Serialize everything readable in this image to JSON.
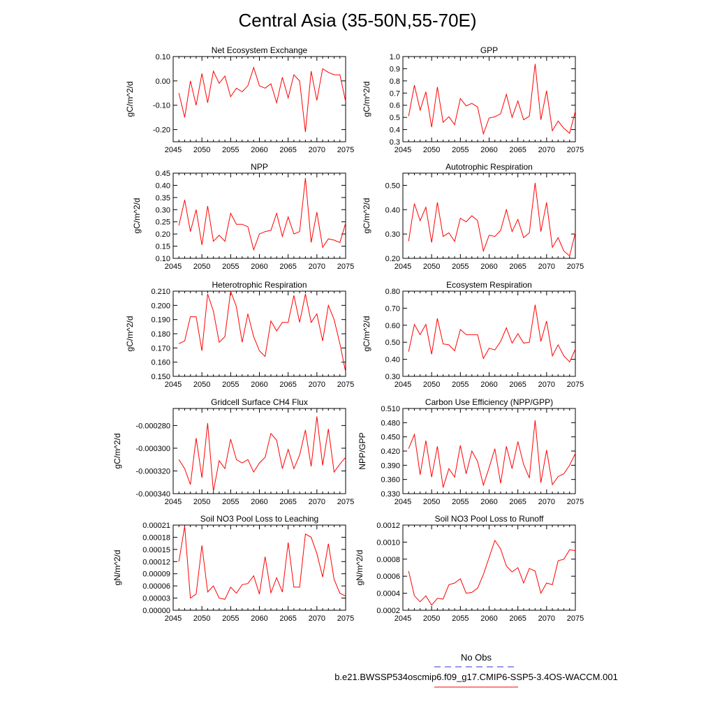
{
  "figure": {
    "title": "Central Asia (35-50N,55-70E)",
    "legend": {
      "obs_label": "No Obs",
      "run_label": "b.e21.BWSSP534oscmip6.f09_g17.CMIP6-SSP5-3.4OS-WACCM.001",
      "obs_color": "#3333cc",
      "run_color": "#ff0000"
    }
  },
  "chart_data": [
    {
      "type": "line",
      "title": "Net Ecosystem Exchange",
      "ylabel": "gC/m^2/d",
      "xlim": [
        2045,
        2075
      ],
      "ylim": [
        -0.25,
        0.1
      ],
      "xticks": [
        2045,
        2050,
        2055,
        2060,
        2065,
        2070,
        2075
      ],
      "yticks": [
        -0.2,
        -0.1,
        0.0,
        0.1
      ],
      "ytick_labels": [
        "-0.20",
        "-0.10",
        "0.00",
        "0.10"
      ],
      "series": [
        {
          "color": "#ff0000",
          "x": [
            2046,
            2047,
            2048,
            2049,
            2050,
            2051,
            2052,
            2053,
            2054,
            2055,
            2056,
            2057,
            2058,
            2059,
            2060,
            2061,
            2062,
            2063,
            2064,
            2065,
            2066,
            2067,
            2068,
            2069,
            2070,
            2071,
            2072,
            2073,
            2074,
            2075
          ],
          "values": [
            -0.05,
            -0.15,
            0.0,
            -0.1,
            0.03,
            -0.09,
            0.04,
            -0.01,
            0.02,
            -0.065,
            -0.03,
            -0.045,
            -0.02,
            0.055,
            -0.02,
            -0.03,
            -0.012,
            -0.09,
            0.015,
            -0.07,
            0.025,
            0.0,
            -0.21,
            0.04,
            -0.08,
            0.05,
            0.035,
            0.025,
            0.025,
            -0.085
          ]
        }
      ]
    },
    {
      "type": "line",
      "title": "GPP",
      "ylabel": "gC/m^2/d",
      "xlim": [
        2045,
        2075
      ],
      "ylim": [
        0.3,
        1.0
      ],
      "xticks": [
        2045,
        2050,
        2055,
        2060,
        2065,
        2070,
        2075
      ],
      "yticks": [
        0.3,
        0.4,
        0.5,
        0.6,
        0.7,
        0.8,
        0.9,
        1.0
      ],
      "ytick_labels": [
        "0.3",
        "0.4",
        "0.5",
        "0.6",
        "0.7",
        "0.8",
        "0.9",
        "1.0"
      ],
      "series": [
        {
          "color": "#ff0000",
          "x": [
            2046,
            2047,
            2048,
            2049,
            2050,
            2051,
            2052,
            2053,
            2054,
            2055,
            2056,
            2057,
            2058,
            2059,
            2060,
            2061,
            2062,
            2063,
            2064,
            2065,
            2066,
            2067,
            2068,
            2069,
            2070,
            2071,
            2072,
            2073,
            2074,
            2075
          ],
          "values": [
            0.51,
            0.765,
            0.56,
            0.71,
            0.42,
            0.75,
            0.46,
            0.505,
            0.44,
            0.655,
            0.595,
            0.615,
            0.585,
            0.365,
            0.495,
            0.505,
            0.53,
            0.69,
            0.5,
            0.635,
            0.48,
            0.51,
            0.94,
            0.48,
            0.72,
            0.39,
            0.47,
            0.41,
            0.37,
            0.55
          ]
        }
      ]
    },
    {
      "type": "line",
      "title": "NPP",
      "ylabel": "gC/m^2/d",
      "xlim": [
        2045,
        2075
      ],
      "ylim": [
        0.1,
        0.45
      ],
      "xticks": [
        2045,
        2050,
        2055,
        2060,
        2065,
        2070,
        2075
      ],
      "yticks": [
        0.1,
        0.15,
        0.2,
        0.25,
        0.3,
        0.35,
        0.4,
        0.45
      ],
      "ytick_labels": [
        "0.10",
        "0.15",
        "0.20",
        "0.25",
        "0.30",
        "0.35",
        "0.40",
        "0.45"
      ],
      "series": [
        {
          "color": "#ff0000",
          "x": [
            2046,
            2047,
            2048,
            2049,
            2050,
            2051,
            2052,
            2053,
            2054,
            2055,
            2056,
            2057,
            2058,
            2059,
            2060,
            2061,
            2062,
            2063,
            2064,
            2065,
            2066,
            2067,
            2068,
            2069,
            2070,
            2071,
            2072,
            2073,
            2074,
            2075
          ],
          "values": [
            0.235,
            0.34,
            0.21,
            0.3,
            0.155,
            0.315,
            0.17,
            0.195,
            0.17,
            0.285,
            0.24,
            0.24,
            0.23,
            0.135,
            0.2,
            0.21,
            0.215,
            0.285,
            0.19,
            0.27,
            0.2,
            0.21,
            0.43,
            0.165,
            0.29,
            0.145,
            0.18,
            0.175,
            0.165,
            0.245
          ]
        }
      ]
    },
    {
      "type": "line",
      "title": "Autotrophic Respiration",
      "ylabel": "gC/m^2/d",
      "xlim": [
        2045,
        2075
      ],
      "ylim": [
        0.2,
        0.55
      ],
      "xticks": [
        2045,
        2050,
        2055,
        2060,
        2065,
        2070,
        2075
      ],
      "yticks": [
        0.2,
        0.3,
        0.4,
        0.5
      ],
      "ytick_labels": [
        "0.20",
        "0.30",
        "0.40",
        "0.50"
      ],
      "series": [
        {
          "color": "#ff0000",
          "x": [
            2046,
            2047,
            2048,
            2049,
            2050,
            2051,
            2052,
            2053,
            2054,
            2055,
            2056,
            2057,
            2058,
            2059,
            2060,
            2061,
            2062,
            2063,
            2064,
            2065,
            2066,
            2067,
            2068,
            2069,
            2070,
            2071,
            2072,
            2073,
            2074,
            2075
          ],
          "values": [
            0.27,
            0.425,
            0.355,
            0.41,
            0.265,
            0.43,
            0.29,
            0.305,
            0.27,
            0.365,
            0.35,
            0.375,
            0.355,
            0.23,
            0.295,
            0.29,
            0.315,
            0.4,
            0.31,
            0.36,
            0.285,
            0.305,
            0.51,
            0.31,
            0.43,
            0.245,
            0.285,
            0.23,
            0.21,
            0.305
          ]
        }
      ]
    },
    {
      "type": "line",
      "title": "Heterotrophic Respiration",
      "ylabel": "gC/m^2/d",
      "xlim": [
        2045,
        2075
      ],
      "ylim": [
        0.15,
        0.21
      ],
      "xticks": [
        2045,
        2050,
        2055,
        2060,
        2065,
        2070,
        2075
      ],
      "yticks": [
        0.15,
        0.16,
        0.17,
        0.18,
        0.19,
        0.2,
        0.21
      ],
      "ytick_labels": [
        "0.150",
        "0.160",
        "0.170",
        "0.180",
        "0.190",
        "0.200",
        "0.210"
      ],
      "series": [
        {
          "color": "#ff0000",
          "x": [
            2046,
            2047,
            2048,
            2049,
            2050,
            2051,
            2052,
            2053,
            2054,
            2055,
            2056,
            2057,
            2058,
            2059,
            2060,
            2061,
            2062,
            2063,
            2064,
            2065,
            2066,
            2067,
            2068,
            2069,
            2070,
            2071,
            2072,
            2073,
            2074,
            2075
          ],
          "values": [
            0.173,
            0.175,
            0.192,
            0.192,
            0.168,
            0.208,
            0.196,
            0.174,
            0.178,
            0.21,
            0.199,
            0.174,
            0.194,
            0.178,
            0.168,
            0.164,
            0.189,
            0.182,
            0.188,
            0.188,
            0.207,
            0.188,
            0.208,
            0.188,
            0.194,
            0.175,
            0.2,
            0.19,
            0.173,
            0.153
          ]
        }
      ]
    },
    {
      "type": "line",
      "title": "Ecosystem Respiration",
      "ylabel": "gC/m^2/d",
      "xlim": [
        2045,
        2075
      ],
      "ylim": [
        0.3,
        0.8
      ],
      "xticks": [
        2045,
        2050,
        2055,
        2060,
        2065,
        2070,
        2075
      ],
      "yticks": [
        0.3,
        0.4,
        0.5,
        0.6,
        0.7,
        0.8
      ],
      "ytick_labels": [
        "0.30",
        "0.40",
        "0.50",
        "0.60",
        "0.70",
        "0.80"
      ],
      "series": [
        {
          "color": "#ff0000",
          "x": [
            2046,
            2047,
            2048,
            2049,
            2050,
            2051,
            2052,
            2053,
            2054,
            2055,
            2056,
            2057,
            2058,
            2059,
            2060,
            2061,
            2062,
            2063,
            2064,
            2065,
            2066,
            2067,
            2068,
            2069,
            2070,
            2071,
            2072,
            2073,
            2074,
            2075
          ],
          "values": [
            0.445,
            0.605,
            0.545,
            0.605,
            0.43,
            0.64,
            0.49,
            0.485,
            0.45,
            0.575,
            0.545,
            0.545,
            0.545,
            0.405,
            0.465,
            0.455,
            0.505,
            0.585,
            0.495,
            0.55,
            0.495,
            0.5,
            0.72,
            0.505,
            0.625,
            0.42,
            0.485,
            0.42,
            0.385,
            0.46
          ]
        }
      ]
    },
    {
      "type": "line",
      "title": "Gridcell Surface CH4 Flux",
      "ylabel": "gC/m^2/d",
      "xlim": [
        2045,
        2075
      ],
      "ylim": [
        -0.00034,
        -0.000265
      ],
      "xticks": [
        2045,
        2050,
        2055,
        2060,
        2065,
        2070,
        2075
      ],
      "yticks": [
        -0.00034,
        -0.00032,
        -0.0003,
        -0.00028
      ],
      "ytick_labels": [
        "-0.000340",
        "-0.000320",
        "-0.000300",
        "-0.000280"
      ],
      "series": [
        {
          "color": "#ff0000",
          "x": [
            2046,
            2047,
            2048,
            2049,
            2050,
            2051,
            2052,
            2053,
            2054,
            2055,
            2056,
            2057,
            2058,
            2059,
            2060,
            2061,
            2062,
            2063,
            2064,
            2065,
            2066,
            2067,
            2068,
            2069,
            2070,
            2071,
            2072,
            2073,
            2074,
            2075
          ],
          "values": [
            -0.00031,
            -0.000318,
            -0.000332,
            -0.000291,
            -0.000326,
            -0.000278,
            -0.000338,
            -0.000311,
            -0.000318,
            -0.000292,
            -0.00031,
            -0.000313,
            -0.00031,
            -0.000321,
            -0.000313,
            -0.000308,
            -0.000287,
            -0.000293,
            -0.000318,
            -0.000301,
            -0.000318,
            -0.000306,
            -0.000284,
            -0.000316,
            -0.000272,
            -0.000315,
            -0.000283,
            -0.000321,
            -0.000314,
            -0.000308
          ]
        }
      ]
    },
    {
      "type": "line",
      "title": "Carbon Use Efficiency (NPP/GPP)",
      "ylabel": "NPP/GPP",
      "xlim": [
        2045,
        2075
      ],
      "ylim": [
        0.33,
        0.51
      ],
      "xticks": [
        2045,
        2050,
        2055,
        2060,
        2065,
        2070,
        2075
      ],
      "yticks": [
        0.33,
        0.36,
        0.39,
        0.42,
        0.45,
        0.48,
        0.51
      ],
      "ytick_labels": [
        "0.330",
        "0.360",
        "0.390",
        "0.420",
        "0.450",
        "0.480",
        "0.510"
      ],
      "series": [
        {
          "color": "#ff0000",
          "x": [
            2046,
            2047,
            2048,
            2049,
            2050,
            2051,
            2052,
            2053,
            2054,
            2055,
            2056,
            2057,
            2058,
            2059,
            2060,
            2061,
            2062,
            2063,
            2064,
            2065,
            2066,
            2067,
            2068,
            2069,
            2070,
            2071,
            2072,
            2073,
            2074,
            2075
          ],
          "values": [
            0.425,
            0.455,
            0.37,
            0.442,
            0.365,
            0.43,
            0.343,
            0.383,
            0.365,
            0.432,
            0.372,
            0.42,
            0.398,
            0.348,
            0.385,
            0.425,
            0.352,
            0.43,
            0.383,
            0.44,
            0.392,
            0.363,
            0.485,
            0.353,
            0.422,
            0.349,
            0.366,
            0.372,
            0.39,
            0.415
          ]
        }
      ]
    },
    {
      "type": "line",
      "title": "Soil NO3 Pool Loss to Leaching",
      "ylabel": "gN/m^2/d",
      "xlim": [
        2045,
        2075
      ],
      "ylim": [
        0.0,
        0.00021
      ],
      "xticks": [
        2045,
        2050,
        2055,
        2060,
        2065,
        2070,
        2075
      ],
      "yticks": [
        0.0,
        3e-05,
        6e-05,
        9e-05,
        0.00012,
        0.00015,
        0.00018,
        0.00021
      ],
      "ytick_labels": [
        "0.00000",
        "0.00003",
        "0.00006",
        "0.00009",
        "0.00012",
        "0.00015",
        "0.00018",
        "0.00021"
      ],
      "series": [
        {
          "color": "#ff0000",
          "x": [
            2046,
            2047,
            2048,
            2049,
            2050,
            2051,
            2052,
            2053,
            2054,
            2055,
            2056,
            2057,
            2058,
            2059,
            2060,
            2061,
            2062,
            2063,
            2064,
            2065,
            2066,
            2067,
            2068,
            2069,
            2070,
            2071,
            2072,
            2073,
            2074,
            2075
          ],
          "values": [
            0.00012,
            0.000207,
            3e-05,
            4e-05,
            0.00016,
            4.5e-05,
            6e-05,
            3e-05,
            2.7e-05,
            5.7e-05,
            4.2e-05,
            6.3e-05,
            6.6e-05,
            8.5e-05,
            4e-05,
            0.000132,
            4.3e-05,
            8e-05,
            4.5e-05,
            0.000167,
            5.7e-05,
            5.7e-05,
            0.000188,
            0.00018,
            0.00014,
            8.2e-05,
            0.000164,
            7.6e-05,
            4.2e-05,
            3.5e-05
          ]
        }
      ]
    },
    {
      "type": "line",
      "title": "Soil NO3 Pool Loss to Runoff",
      "ylabel": "gN/m^2/d",
      "xlim": [
        2045,
        2075
      ],
      "ylim": [
        0.0002,
        0.0012
      ],
      "xticks": [
        2045,
        2050,
        2055,
        2060,
        2065,
        2070,
        2075
      ],
      "yticks": [
        0.0002,
        0.0004,
        0.0006,
        0.0008,
        0.001,
        0.0012
      ],
      "ytick_labels": [
        "0.0002",
        "0.0004",
        "0.0006",
        "0.0008",
        "0.0010",
        "0.0012"
      ],
      "series": [
        {
          "color": "#ff0000",
          "x": [
            2046,
            2047,
            2048,
            2049,
            2050,
            2051,
            2052,
            2053,
            2054,
            2055,
            2056,
            2057,
            2058,
            2059,
            2060,
            2061,
            2062,
            2063,
            2064,
            2065,
            2066,
            2067,
            2068,
            2069,
            2070,
            2071,
            2072,
            2073,
            2074,
            2075
          ],
          "values": [
            0.00066,
            0.00037,
            0.0003,
            0.00037,
            0.00026,
            0.00034,
            0.00033,
            0.0005,
            0.00052,
            0.00057,
            0.0004,
            0.00041,
            0.00046,
            0.00062,
            0.00082,
            0.00102,
            0.00092,
            0.00072,
            0.00065,
            0.0007,
            0.00052,
            0.00069,
            0.00066,
            0.0004,
            0.00052,
            0.0005,
            0.00078,
            0.0008,
            0.00091,
            0.0009
          ]
        }
      ]
    }
  ]
}
